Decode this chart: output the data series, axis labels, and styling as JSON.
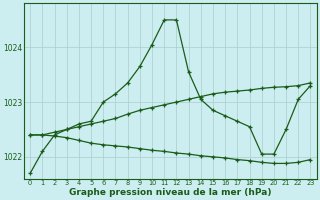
{
  "title": "Graphe pression niveau de la mer (hPa)",
  "background_color": "#cceef0",
  "grid_color": "#aacccc",
  "line_color": "#1a5c1a",
  "hours": [
    0,
    1,
    2,
    3,
    4,
    5,
    6,
    7,
    8,
    9,
    10,
    11,
    12,
    13,
    14,
    15,
    16,
    17,
    18,
    19,
    20,
    21,
    22,
    23
  ],
  "series_actual": [
    1021.7,
    1022.1,
    1022.4,
    1022.5,
    1022.6,
    1022.65,
    1023.0,
    1023.15,
    1023.35,
    1023.65,
    1024.05,
    1024.5,
    1024.5,
    1023.55,
    1023.05,
    1022.85,
    1022.75,
    1022.65,
    1022.55,
    1022.05,
    1022.05,
    1022.5,
    1023.05,
    1023.3
  ],
  "series_max": [
    1022.4,
    1022.4,
    1022.45,
    1022.5,
    1022.55,
    1022.6,
    1022.65,
    1022.7,
    1022.78,
    1022.85,
    1022.9,
    1022.95,
    1023.0,
    1023.05,
    1023.1,
    1023.15,
    1023.18,
    1023.2,
    1023.22,
    1023.25,
    1023.27,
    1023.28,
    1023.3,
    1023.35
  ],
  "series_min": [
    1022.4,
    1022.4,
    1022.38,
    1022.35,
    1022.3,
    1022.25,
    1022.22,
    1022.2,
    1022.18,
    1022.15,
    1022.12,
    1022.1,
    1022.07,
    1022.05,
    1022.02,
    1022.0,
    1021.98,
    1021.95,
    1021.93,
    1021.9,
    1021.88,
    1021.88,
    1021.9,
    1021.95
  ],
  "ylim_min": 1021.6,
  "ylim_max": 1024.8,
  "yticks": [
    1022,
    1023,
    1024
  ],
  "title_fontsize": 6.5,
  "marker": "+"
}
